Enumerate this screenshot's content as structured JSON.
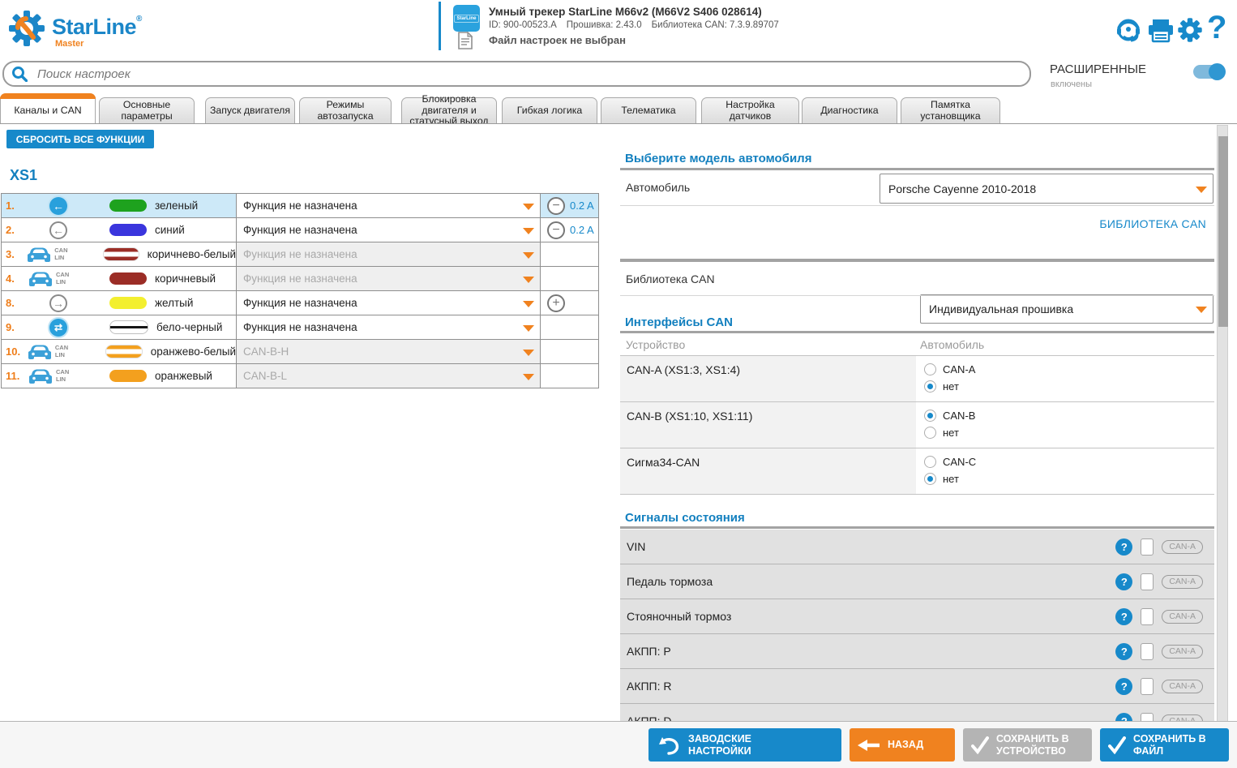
{
  "app": {
    "brand": "StarLine",
    "reg_mark": "®",
    "brand_sub": "Master"
  },
  "header": {
    "device": {
      "badge_text": "StarLine",
      "title": "Умный трекер StarLine M66v2 (M66V2 S406 028614)",
      "info": [
        "ID: 900-00523.A",
        "Прошивка: 2.43.0",
        "Библиотека CAN: 7.3.9.89707"
      ],
      "file_status": "Файл настроек не выбран"
    },
    "icons": [
      "support",
      "print",
      "settings",
      "help"
    ]
  },
  "search": {
    "placeholder": "Поиск настроек"
  },
  "advanced": {
    "label": "РАСШИРЕННЫЕ",
    "status": "включены",
    "enabled": true
  },
  "tabs": [
    {
      "label": "Каналы и CAN",
      "active": true
    },
    {
      "label": "Основные параметры",
      "active": false
    },
    {
      "label": "Запуск двигателя",
      "active": false
    },
    {
      "label": "Режимы автозапуска",
      "active": false
    },
    {
      "label": "Блокировка двигателя и статусный выход",
      "active": false
    },
    {
      "label": "Гибкая логика",
      "active": false
    },
    {
      "label": "Телематика",
      "active": false
    },
    {
      "label": "Настройка датчиков",
      "active": false
    },
    {
      "label": "Диагностика",
      "active": false
    },
    {
      "label": "Памятка установщика",
      "active": false
    }
  ],
  "left": {
    "reset_button": "СБРОСИТЬ ВСЕ ФУНКЦИИ",
    "connector": "XS1",
    "can_lin_text": [
      "CAN",
      "LIN"
    ],
    "channels": [
      {
        "num": "1.",
        "icon": "dir-left-active",
        "wire_label": "зеленый",
        "wire": {
          "style": "solid",
          "color": "#1ea21e"
        },
        "value": "Функция не назначена",
        "disabled": false,
        "selected": true,
        "extra": "minus",
        "amp": "0.2 A"
      },
      {
        "num": "2.",
        "icon": "dir-left",
        "wire_label": "синий",
        "wire": {
          "style": "solid",
          "color": "#3a35dd"
        },
        "value": "Функция не назначена",
        "disabled": false,
        "selected": false,
        "extra": "minus",
        "amp": "0.2 A"
      },
      {
        "num": "3.",
        "icon": "can-lin",
        "wire_label": "коричнево-белый",
        "wire": {
          "style": "striped",
          "color": "#9b2d26"
        },
        "value": "Функция не назначена",
        "disabled": true,
        "selected": false,
        "extra": "none",
        "amp": ""
      },
      {
        "num": "4.",
        "icon": "can-lin",
        "wire_label": "коричневый",
        "wire": {
          "style": "solid",
          "color": "#9b2d26"
        },
        "value": "Функция не назначена",
        "disabled": true,
        "selected": false,
        "extra": "none",
        "amp": ""
      },
      {
        "num": "8.",
        "icon": "dir-right",
        "wire_label": "желтый",
        "wire": {
          "style": "solid",
          "color": "#f3ef2f"
        },
        "value": "Функция не назначена",
        "disabled": false,
        "selected": false,
        "extra": "plus",
        "amp": ""
      },
      {
        "num": "9.",
        "icon": "dir-both-active",
        "wire_label": "бело-черный",
        "wire": {
          "style": "line",
          "color": "#151515"
        },
        "value": "Функция не назначена",
        "disabled": false,
        "selected": false,
        "extra": "none",
        "amp": ""
      },
      {
        "num": "10.",
        "icon": "can-lin",
        "wire_label": "оранжево-белый",
        "wire": {
          "style": "striped",
          "color": "#f3a01e"
        },
        "value": "CAN-B-H",
        "disabled": true,
        "selected": false,
        "extra": "none",
        "amp": ""
      },
      {
        "num": "11.",
        "icon": "can-lin",
        "wire_label": "оранжевый",
        "wire": {
          "style": "solid",
          "color": "#f3a01e"
        },
        "value": "CAN-B-L",
        "disabled": true,
        "selected": false,
        "extra": "none",
        "amp": ""
      }
    ]
  },
  "right": {
    "model": {
      "title": "Выберите модель автомобиля",
      "car_label": "Автомобиль",
      "car_value": "Porsche Cayenne 2010-2018",
      "library_link": "БИБЛИОТЕКА CAN"
    },
    "library": {
      "label": "Библиотека CAN",
      "value": "Индивидуальная прошивка"
    },
    "interfaces": {
      "title": "Интерфейсы CAN",
      "col_device": "Устройство",
      "col_car": "Автомобиль",
      "rows": [
        {
          "device": "CAN-A (XS1:3, XS1:4)",
          "options": [
            {
              "label": "CAN-A",
              "selected": false
            },
            {
              "label": "нет",
              "selected": true
            }
          ]
        },
        {
          "device": "CAN-B (XS1:10, XS1:11)",
          "options": [
            {
              "label": "CAN-B",
              "selected": true
            },
            {
              "label": "нет",
              "selected": false
            }
          ]
        },
        {
          "device": "Сигма34-CAN",
          "options": [
            {
              "label": "CAN-C",
              "selected": false
            },
            {
              "label": "нет",
              "selected": true
            }
          ]
        }
      ]
    },
    "signals": {
      "title": "Сигналы состояния",
      "rows": [
        {
          "label": "VIN",
          "badge": "CAN-A",
          "checked": false
        },
        {
          "label": "Педаль тормоза",
          "badge": "CAN-A",
          "checked": false
        },
        {
          "label": "Стояночный тормоз",
          "badge": "CAN-A",
          "checked": false
        },
        {
          "label": "АКПП: P",
          "badge": "CAN-A",
          "checked": false
        },
        {
          "label": "АКПП: R",
          "badge": "CAN-A",
          "checked": false
        },
        {
          "label": "АКПП: D",
          "badge": "CAN-A",
          "checked": false
        }
      ]
    }
  },
  "footer": {
    "buttons": [
      {
        "label": "ЗАВОДСКИЕ НАСТРОЙКИ",
        "style": "blue",
        "icon": "undo"
      },
      {
        "label": "НАЗАД",
        "style": "orange",
        "icon": "arrow-left"
      },
      {
        "label": "СОХРАНИТЬ В УСТРОЙСТВО",
        "style": "gray",
        "icon": "check"
      },
      {
        "label": "СОХРАНИТЬ В ФАЙЛ",
        "style": "blue",
        "icon": "check"
      }
    ]
  },
  "colors": {
    "accent_blue": "#1789ca",
    "accent_orange": "#f0821f",
    "heading_blue": "#1380bf",
    "selected_row": "#cde9f8"
  }
}
